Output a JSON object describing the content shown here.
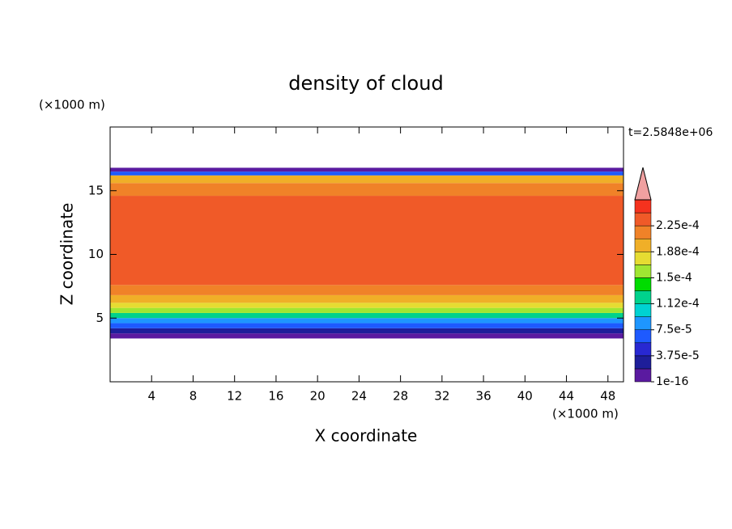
{
  "chart_data": {
    "type": "contour",
    "title": "density of cloud",
    "xlabel": "X coordinate",
    "ylabel": "Z coordinate",
    "x_unit": "(×1000 m)",
    "y_unit": "(×1000 m)",
    "time_label": "t=2.5848e+06",
    "xlim": [
      0,
      49.5
    ],
    "ylim": [
      0,
      20
    ],
    "xticks": [
      4,
      8,
      12,
      16,
      20,
      24,
      28,
      32,
      36,
      40,
      44,
      48
    ],
    "yticks": [
      5,
      10,
      15
    ],
    "profile": {
      "z_bins": [
        3.4,
        3.8,
        4.2,
        4.6,
        5.0,
        5.4,
        5.8,
        6.2,
        6.8,
        7.6,
        14.6,
        15.6,
        16.2,
        16.5,
        16.8
      ],
      "values": [
        1e-05,
        3e-05,
        6e-05,
        8e-05,
        0.00012,
        0.000155,
        0.00018,
        0.0002,
        0.00022,
        0.000235,
        0.00022,
        0.00019,
        7e-05,
        1e-05
      ]
    },
    "colorbar": {
      "levels": [
        1e-16,
        1.875e-05,
        3.75e-05,
        5.625e-05,
        7.5e-05,
        9.375e-05,
        0.0001125,
        0.00013125,
        0.00015,
        0.00016875,
        0.0001875,
        0.00020625,
        0.000225,
        0.00024375,
        0.0002625
      ],
      "colors": [
        "#5a1aa0",
        "#1e1e9a",
        "#2828d2",
        "#1e5aff",
        "#1e96ff",
        "#00d2d2",
        "#00d28c",
        "#00dc00",
        "#a0e632",
        "#e6dc32",
        "#f0af28",
        "#f08228",
        "#f05a28",
        "#f5321e"
      ],
      "extend_color": "#f0a0a0",
      "ticks": [
        {
          "value": 1e-16,
          "label": "1e-16"
        },
        {
          "value": 3.75e-05,
          "label": "3.75e-5"
        },
        {
          "value": 7.5e-05,
          "label": "7.5e-5"
        },
        {
          "value": 0.0001125,
          "label": "1.12e-4"
        },
        {
          "value": 0.00015,
          "label": "1.5e-4"
        },
        {
          "value": 0.0001875,
          "label": "1.88e-4"
        },
        {
          "value": 0.000225,
          "label": "2.25e-4"
        }
      ]
    }
  }
}
